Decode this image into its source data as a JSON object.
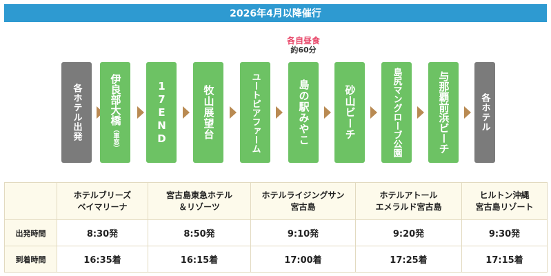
{
  "banner": {
    "title": "2026年4月以降催行"
  },
  "route": {
    "stops": [
      {
        "label": "各ホテル出発",
        "sub": "",
        "color": "gray"
      },
      {
        "label": "伊良部大橋",
        "sub": "（車窓）",
        "color": "green"
      },
      {
        "label": "17END",
        "sub": "",
        "color": "green"
      },
      {
        "label": "牧山展望台",
        "sub": "",
        "color": "green"
      },
      {
        "label": "ユートピアファーム",
        "sub": "",
        "color": "green"
      },
      {
        "label": "島の駅みやこ",
        "sub": "",
        "color": "green"
      },
      {
        "label": "砂山ビーチ",
        "sub": "",
        "color": "green"
      },
      {
        "label": "島尻マングローブ公園",
        "sub": "",
        "color": "green"
      },
      {
        "label": "与那覇前浜ビーチ",
        "sub": "",
        "color": "green"
      },
      {
        "label": "各ホテル",
        "sub": "",
        "color": "gray"
      }
    ],
    "lunch": {
      "title": "各自昼食",
      "duration": "約60分"
    },
    "arrow_color": "#b98a52",
    "green_color": "#6dc264",
    "gray_color": "#7b7b7b"
  },
  "schedule": {
    "hotels": [
      {
        "line1": "ホテルブリーズ",
        "line2": "ベイマリーナ"
      },
      {
        "line1": "宮古島東急ホテル",
        "line2": "＆リゾーツ"
      },
      {
        "line1": "ホテルライジングサン",
        "line2": "宮古島"
      },
      {
        "line1": "ホテルアトール",
        "line2": "エメラルド宮古島"
      },
      {
        "line1": "ヒルトン沖縄",
        "line2": "宮古島リゾート"
      }
    ],
    "rows": [
      {
        "label": "出発時間",
        "values": [
          "8:30発",
          "8:50発",
          "9:10発",
          "9:20発",
          "9:30発"
        ]
      },
      {
        "label": "到着時間",
        "values": [
          "16:35着",
          "16:15着",
          "17:00着",
          "17:25着",
          "17:15着"
        ]
      }
    ]
  }
}
